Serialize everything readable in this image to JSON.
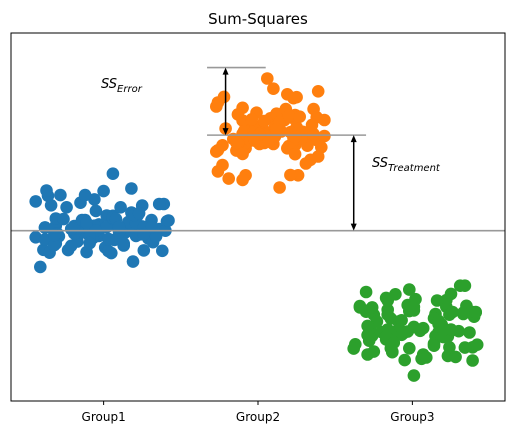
{
  "chart_data": {
    "type": "scatter",
    "title": "Sum-Squares",
    "xlabel": "",
    "ylabel": "",
    "categories": [
      "Group1",
      "Group2",
      "Group3"
    ],
    "xlim": [
      0.4,
      3.6
    ],
    "ylim": [
      -5.17,
      6.0
    ],
    "yticks_shown": false,
    "grand_mean": 0.0,
    "colors": {
      "Group1": "#1f77b4",
      "Group2": "#ff7f0e",
      "Group3": "#2ca02c",
      "reference_lines": "#999999",
      "arrows": "#000000"
    },
    "group_means": {
      "Group1": 0.0,
      "Group2": 2.9,
      "Group3": -3.0
    },
    "annotations": {
      "ss_error": {
        "base": "SS",
        "sub": "Error",
        "y_from": 4.95,
        "y_to": 2.9
      },
      "ss_treatment": {
        "base": "SS",
        "sub": "Treatment",
        "y_from": 2.9,
        "y_to": 0.0
      }
    },
    "series": [
      {
        "name": "Group1",
        "x": [
          0.56,
          0.72,
          0.97,
          1.0,
          0.61,
          1.02,
          0.94,
          0.93,
          1.18,
          1.05,
          0.85,
          0.62,
          0.64,
          0.95,
          1.14,
          0.83,
          0.86,
          1.19,
          0.97,
          1.18,
          1.06,
          1.02,
          0.62,
          1.25,
          0.77,
          0.66,
          1.24,
          0.76,
          0.69,
          1.06,
          1.06,
          1.31,
          1.06,
          0.85,
          1.25,
          0.94,
          1.26,
          0.89,
          1.38,
          0.81,
          0.94,
          1.22,
          1.41,
          0.91,
          1.11,
          1.01,
          1.07,
          0.56,
          1.08,
          1.19,
          1.36,
          0.79,
          1.05,
          0.71,
          0.83,
          1.16,
          1.03,
          1.29,
          0.81,
          1.4,
          0.59,
          0.63,
          1.26,
          0.88,
          0.65,
          1.1,
          1.21,
          1.21,
          1.32,
          1.39,
          0.93,
          0.88,
          0.95,
          1.26,
          1.03,
          0.86,
          0.69,
          1.2,
          0.91,
          1.23,
          0.69,
          1.13,
          1.34,
          1.13,
          0.79,
          1.31,
          0.89,
          1.42,
          0.62,
          0.74,
          0.68,
          1.36,
          1.24,
          0.7,
          0.68,
          1.19,
          1.26,
          1.13,
          1.1,
          0.91
        ],
        "y": [
          -0.2,
          1.08,
          -0.16,
          1.2,
          -0.58,
          0.46,
          -0.02,
          0.12,
          0.55,
          0.19,
          0.04,
          0.09,
          1.06,
          0.6,
          -0.06,
          -0.33,
          -0.06,
          0.12,
          0.19,
          1.28,
          0.45,
          0.11,
          0.1,
          0.76,
          -0.59,
          0.77,
          -0.0,
          0.71,
          0.15,
          0.36,
          1.73,
          0.32,
          0.39,
          0.85,
          0.13,
          0.95,
          -0.04,
          -0.65,
          -0.61,
          -0.09,
          0.15,
          0.46,
          0.28,
          -0.02,
          0.71,
          -0.51,
          -0.28,
          0.89,
          0.35,
          0.4,
          0.05,
          -0.46,
          -0.68,
          -0.17,
          0.06,
          0.26,
          -0.62,
          -0.24,
          0.14,
          0.0,
          -1.1,
          1.22,
          -0.6,
          1.08,
          -0.67,
          -0.05,
          0.24,
          -0.16,
          -0.35,
          0.81,
          -0.23,
          0.32,
          -0.0,
          0.1,
          -0.25,
          0.32,
          -0.39,
          0.47,
          -0.17,
          0.53,
          0.37,
          -0.45,
          -0.17,
          -0.41,
          0.05,
          0.1,
          0.24,
          0.31,
          -0.27,
          0.35,
          -0.44,
          0.81,
          -0.11,
          -0.08,
          -0.13,
          -0.94,
          -0.11,
          -0.39,
          0.11,
          -0.38
        ]
      },
      {
        "name": "Group2",
        "x": [
          1.77,
          2.04,
          2.22,
          1.93,
          2.14,
          2.41,
          2.01,
          1.78,
          1.9,
          2.19,
          2.08,
          1.73,
          2.36,
          2.1,
          1.98,
          2.17,
          1.92,
          2.01,
          1.94,
          2.06,
          2.32,
          1.9,
          1.92,
          1.9,
          1.98,
          1.92,
          2.13,
          2.38,
          2.24,
          2.24,
          2.05,
          2.15,
          2.03,
          2.0,
          2.01,
          1.77,
          1.74,
          1.86,
          1.92,
          2.29,
          2.2,
          2.36,
          2.19,
          2.39,
          2.32,
          1.81,
          1.93,
          1.87,
          1.98,
          2.11,
          1.91,
          1.9,
          2.04,
          1.9,
          2.38,
          2.23,
          2.06,
          2.04,
          2.1,
          2.12,
          2.43,
          1.74,
          2.25,
          2.14,
          1.73,
          2.07,
          2.11,
          2.18,
          2.26,
          2.25,
          2.23,
          2.14,
          1.84,
          2.34,
          2.14,
          1.87,
          2.31,
          2.35,
          1.95,
          2.25,
          2.43,
          2.24,
          1.74,
          1.97,
          2.12,
          2.21,
          2.28,
          1.98,
          1.99,
          2.2,
          2.01,
          2.39,
          1.86,
          2.27,
          1.97,
          2.21,
          1.79,
          2.24,
          2.23,
          1.96
        ],
        "y": [
          2.59,
          2.66,
          3.43,
          3.14,
          3.35,
          2.53,
          3.08,
          4.06,
          2.94,
          2.5,
          3.41,
          3.77,
          3.69,
          2.63,
          2.97,
          3.35,
          1.68,
          2.63,
          2.96,
          2.93,
          2.82,
          3.73,
          3.12,
          3.34,
          2.99,
          2.5,
          3.47,
          2.75,
          2.59,
          3.51,
          3.0,
          3.01,
          2.73,
          3.15,
          3.01,
          1.99,
          1.8,
          2.43,
          2.66,
          3.0,
          2.57,
          2.93,
          4.14,
          4.23,
          2.58,
          1.58,
          2.86,
          2.65,
          3.07,
          2.86,
          3.02,
          2.33,
          3.33,
          1.54,
          3.44,
          2.81,
          4.62,
          2.92,
          4.31,
          3.55,
          2.87,
          3.89,
          3.14,
          3.25,
          2.4,
          2.7,
          3.14,
          3.69,
          1.68,
          4.05,
          2.55,
          1.31,
          2.78,
          2.15,
          3.3,
          3.53,
          2.04,
          3.21,
          2.73,
          2.79,
          3.36,
          2.32,
          2.44,
          2.99,
          3.08,
          2.99,
          2.79,
          2.73,
          3.58,
          3.49,
          2.93,
          2.25,
          2.67,
          3.46,
          2.85,
          1.69,
          3.1,
          2.84,
          4.02,
          3.38
        ]
      },
      {
        "name": "Group3",
        "x": [
          3.01,
          3.4,
          3.39,
          2.87,
          2.7,
          3.31,
          3.17,
          3.19,
          3.22,
          2.91,
          2.94,
          3.23,
          2.75,
          3.15,
          2.84,
          3.15,
          2.91,
          3.01,
          3.33,
          3.22,
          3.25,
          3.35,
          2.87,
          3.34,
          2.92,
          2.83,
          2.66,
          3.17,
          2.63,
          3.19,
          3.16,
          3.06,
          3.22,
          3.41,
          3.23,
          2.62,
          2.73,
          3.24,
          2.75,
          2.74,
          2.71,
          3.07,
          2.98,
          3.24,
          2.89,
          2.72,
          2.98,
          2.97,
          3.23,
          2.66,
          2.83,
          3.3,
          2.98,
          3.14,
          2.7,
          2.95,
          3.25,
          3.18,
          2.84,
          3.02,
          2.86,
          3.42,
          2.8,
          2.72,
          2.74,
          3.26,
          3.38,
          2.87,
          3.14,
          3.07,
          2.86,
          3.01,
          3.19,
          2.93,
          2.84,
          3.24,
          2.86,
          3.05,
          3.33,
          3.34,
          2.84,
          3.09,
          2.93,
          2.83,
          3.28,
          2.77,
          3.17,
          3.41,
          2.97,
          3.01,
          2.88,
          3.39,
          3.2,
          2.73,
          2.71,
          3.37,
          3.25,
          3.14,
          3.2,
          2.71
        ],
        "y": [
          -4.4,
          -2.61,
          -3.54,
          -3.07,
          -2.46,
          -1.67,
          -3.08,
          -2.99,
          -2.31,
          -3.03,
          -3.12,
          -3.11,
          -2.55,
          -2.53,
          -2.55,
          -3.2,
          -2.76,
          -2.42,
          -2.49,
          -2.11,
          -1.92,
          -2.28,
          -3.67,
          -3.55,
          -3.02,
          -2.04,
          -2.33,
          -2.84,
          -3.45,
          -2.85,
          -2.12,
          -3.89,
          -3.16,
          -2.47,
          -3.21,
          -3.58,
          -2.38,
          -2.55,
          -3.67,
          -3.19,
          -3.76,
          -2.96,
          -3.57,
          -3.54,
          -1.93,
          -2.98,
          -1.79,
          -2.26,
          -3.8,
          -2.29,
          -3.3,
          -3.05,
          -2.44,
          -3.43,
          -1.86,
          -3.93,
          -3.01,
          -2.98,
          -2.4,
          -2.08,
          -3.57,
          -3.46,
          -3.08,
          -3.34,
          -2.33,
          -2.47,
          -2.46,
          -3.69,
          -2.66,
          -3.76,
          -2.67,
          -2.92,
          -3.07,
          -3.16,
          -2.12,
          -3.08,
          -3.16,
          -3.04,
          -2.53,
          -1.67,
          -3.0,
          -3.85,
          -2.72,
          -3.21,
          -3.83,
          -2.76,
          -2.74,
          -2.48,
          -3.06,
          -2.31,
          -3.4,
          -3.94,
          -3.23,
          -2.92,
          -3.17,
          -3.09,
          -3.0,
          -3.49,
          -3.02,
          -2.89
        ]
      }
    ]
  }
}
